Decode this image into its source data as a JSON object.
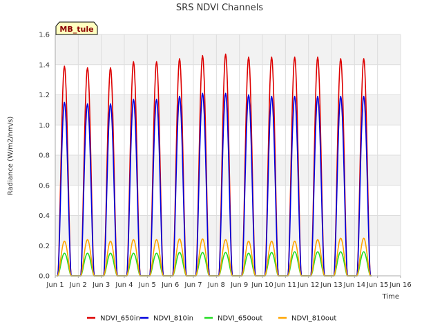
{
  "chart_data": {
    "type": "line",
    "title": "SRS NDVI Channels",
    "xlabel": "Time",
    "ylabel": "Radiance (W/m2/nm/s)",
    "badge": "MB_tule",
    "xlim": [
      1,
      16
    ],
    "ylim": [
      0,
      1.6
    ],
    "xticks": [
      1,
      2,
      3,
      4,
      5,
      6,
      7,
      8,
      9,
      10,
      11,
      12,
      13,
      14,
      15,
      16
    ],
    "xtick_labels": [
      "Jun 1",
      "Jun 2",
      "Jun 3",
      "Jun 4",
      "Jun 5",
      "Jun 6",
      "Jun 7",
      "Jun 8",
      "Jun 9",
      "Jun 10",
      "Jun 11",
      "Jun 12",
      "Jun 13",
      "Jun 14",
      "Jun 15",
      "Jun 16"
    ],
    "yticks": [
      0,
      0.2,
      0.4,
      0.6,
      0.8,
      1.0,
      1.2,
      1.4,
      1.6
    ],
    "ytick_labels": [
      "0.0",
      "0.2",
      "0.4",
      "0.6",
      "0.8",
      "1.0",
      "1.2",
      "1.4",
      "1.6"
    ],
    "grid": true,
    "legend_position": "bottom",
    "days": [
      1.4,
      2.4,
      3.4,
      4.4,
      5.4,
      6.4,
      7.4,
      8.4,
      9.4,
      10.4,
      11.4,
      12.4,
      13.4,
      14.4
    ],
    "series": [
      {
        "name": "NDVI_650in",
        "color": "#dd0000",
        "peaks": [
          1.39,
          1.38,
          1.38,
          1.42,
          1.42,
          1.44,
          1.46,
          1.47,
          1.45,
          1.45,
          1.45,
          1.45,
          1.44,
          1.44
        ]
      },
      {
        "name": "NDVI_810in",
        "color": "#0000dd",
        "peaks": [
          1.15,
          1.14,
          1.14,
          1.17,
          1.17,
          1.19,
          1.21,
          1.21,
          1.2,
          1.19,
          1.19,
          1.19,
          1.19,
          1.19
        ]
      },
      {
        "name": "NDVI_650out",
        "color": "#22dd22",
        "peaks": [
          0.15,
          0.15,
          0.15,
          0.15,
          0.15,
          0.155,
          0.155,
          0.155,
          0.15,
          0.155,
          0.16,
          0.16,
          0.16,
          0.16
        ]
      },
      {
        "name": "NDVI_810out",
        "color": "#ffa500",
        "peaks": [
          0.23,
          0.24,
          0.23,
          0.24,
          0.24,
          0.245,
          0.245,
          0.24,
          0.23,
          0.23,
          0.23,
          0.24,
          0.25,
          0.25
        ]
      }
    ]
  }
}
